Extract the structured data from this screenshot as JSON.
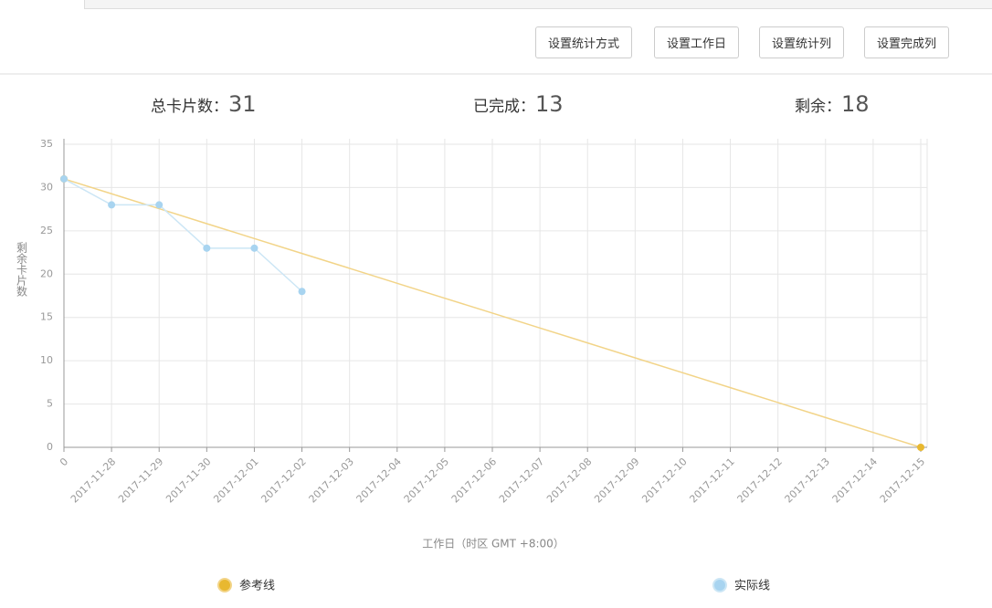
{
  "buttons": [
    "设置统计方式",
    "设置工作日",
    "设置统计列",
    "设置完成列"
  ],
  "stats": [
    {
      "label": "总卡片数：",
      "value": 31
    },
    {
      "label": "已完成：",
      "value": 13
    },
    {
      "label": "剩余：",
      "value": 18
    }
  ],
  "chart_data": {
    "type": "line",
    "categories": [
      "0",
      "2017-11-28",
      "2017-11-29",
      "2017-11-30",
      "2017-12-01",
      "2017-12-02",
      "2017-12-03",
      "2017-12-04",
      "2017-12-05",
      "2017-12-06",
      "2017-12-07",
      "2017-12-08",
      "2017-12-09",
      "2017-12-10",
      "2017-12-11",
      "2017-12-12",
      "2017-12-13",
      "2017-12-14",
      "2017-12-15"
    ],
    "series": [
      {
        "name": "参考线",
        "color": "#e8b830",
        "line_color": "#f2d488",
        "values": [
          31,
          29.28,
          27.56,
          25.83,
          24.11,
          22.39,
          20.67,
          18.94,
          17.22,
          15.5,
          13.78,
          12.06,
          10.33,
          8.61,
          6.89,
          5.17,
          3.44,
          1.72,
          0
        ]
      },
      {
        "name": "实际线",
        "color": "#a8d4f0",
        "line_color": "#cce6f5",
        "values": [
          31,
          28,
          28,
          23,
          23,
          18,
          null,
          null,
          null,
          null,
          null,
          null,
          null,
          null,
          null,
          null,
          null,
          null,
          null
        ]
      }
    ],
    "ylim": [
      0,
      35
    ],
    "yticks": [
      0,
      5,
      10,
      15,
      20,
      25,
      30,
      35
    ],
    "y_label": "剩余卡片数",
    "x_label": "工作日（时区 GMT +8:00）",
    "grid": true
  }
}
